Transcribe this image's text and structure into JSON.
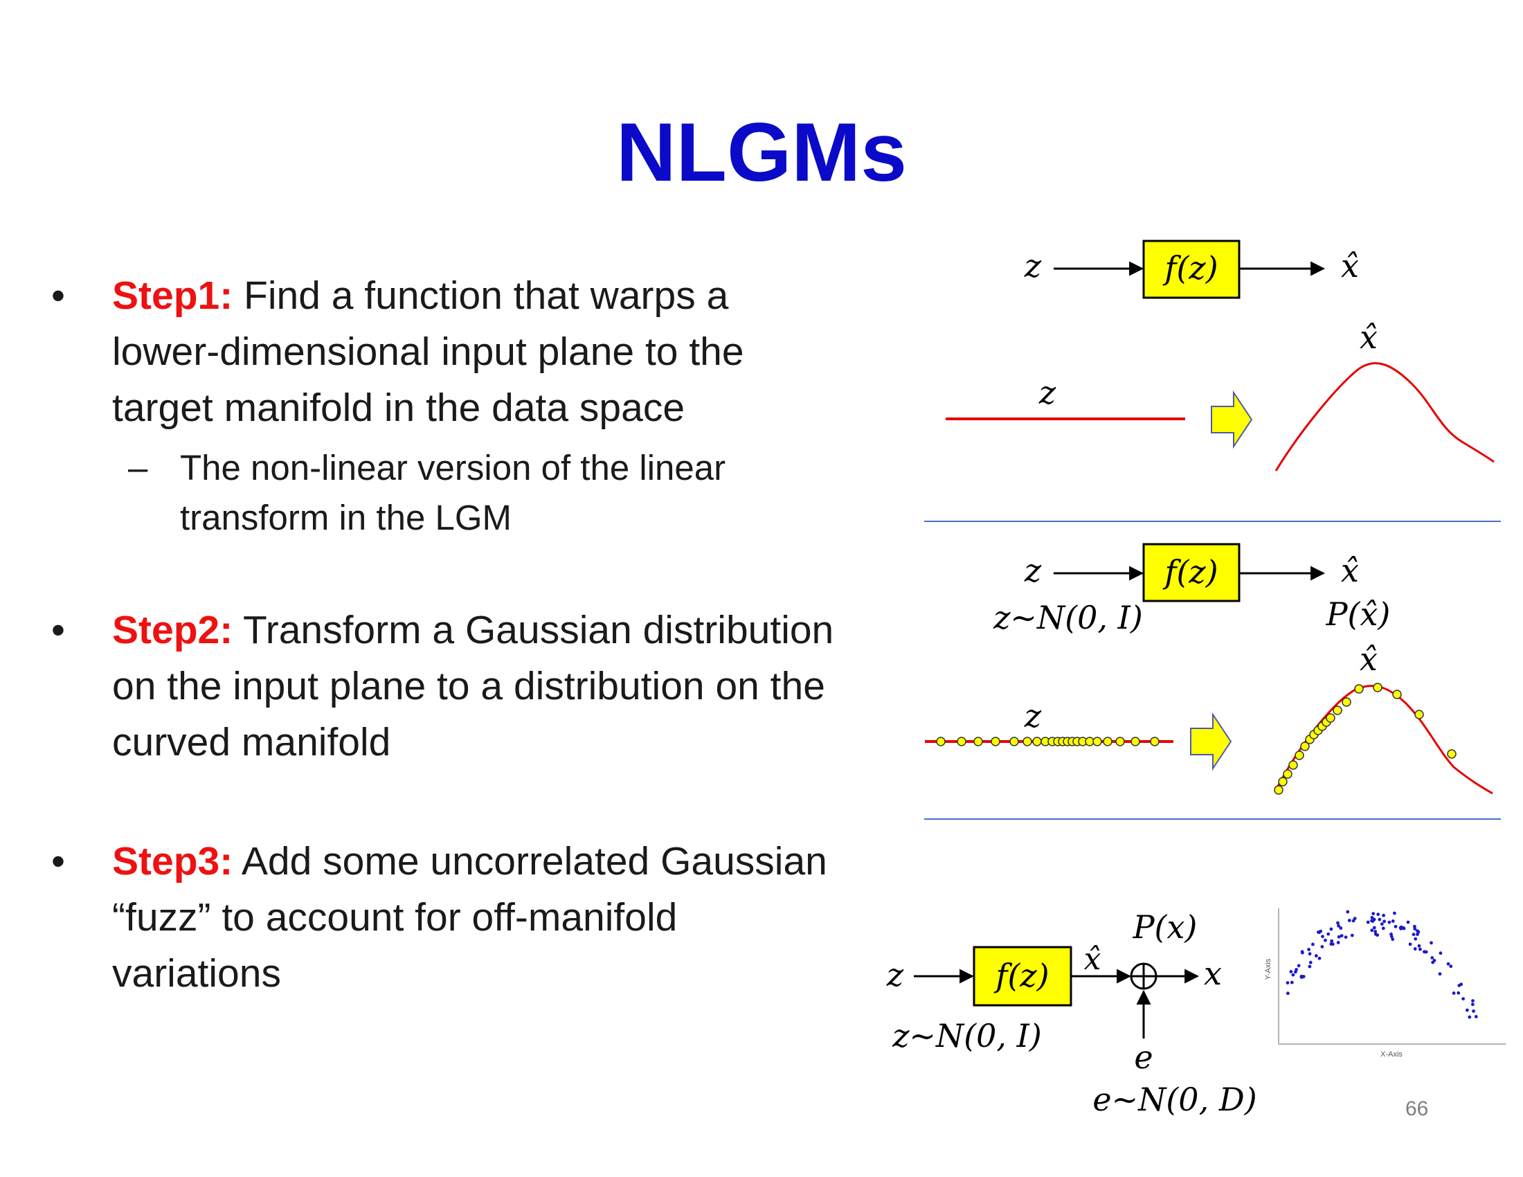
{
  "title": "NLGMs",
  "page_number": "66",
  "colors": {
    "title": "#0a0ac8",
    "step": "#ee1111",
    "box_fill": "#ffff00",
    "curve": "#e60000",
    "divider": "#4472c4",
    "scatter": "#1a1acc"
  },
  "bullets": [
    {
      "step": "Step1:",
      "text": " Find a function that warps a lower-dimensional input plane to the target manifold in the data space",
      "sub": "The non-linear version of the linear transform in the LGM"
    },
    {
      "step": "Step2:",
      "text": " Transform a Gaussian distribution on the input plane to a distribution on the curved manifold"
    },
    {
      "step": "Step3:",
      "text": " Add some uncorrelated Gaussian “fuzz” to account for off-manifold variations"
    }
  ],
  "diagram1": {
    "input": "z",
    "box": "f(z)",
    "output": "x̂",
    "line_label": "z",
    "curve_label": "x̂"
  },
  "diagram2": {
    "input": "z",
    "input_dist": "z~N(0, I)",
    "box": "f(z)",
    "output": "x̂",
    "output_dist": "P(x̂)",
    "line_label": "z",
    "curve_label": "x̂"
  },
  "diagram3": {
    "input": "z",
    "input_dist": "z~N(0, I)",
    "box": "f(z)",
    "mid": "x̂",
    "output": "x",
    "output_dist": "P(x)",
    "noise": "e",
    "noise_dist": "e~N(0, D)",
    "scatter_ylabel": "Y-Axis",
    "scatter_xlabel": "X-Axis"
  },
  "icons": {
    "arrow": "right-arrow-icon",
    "plus": "circled-plus-icon"
  }
}
